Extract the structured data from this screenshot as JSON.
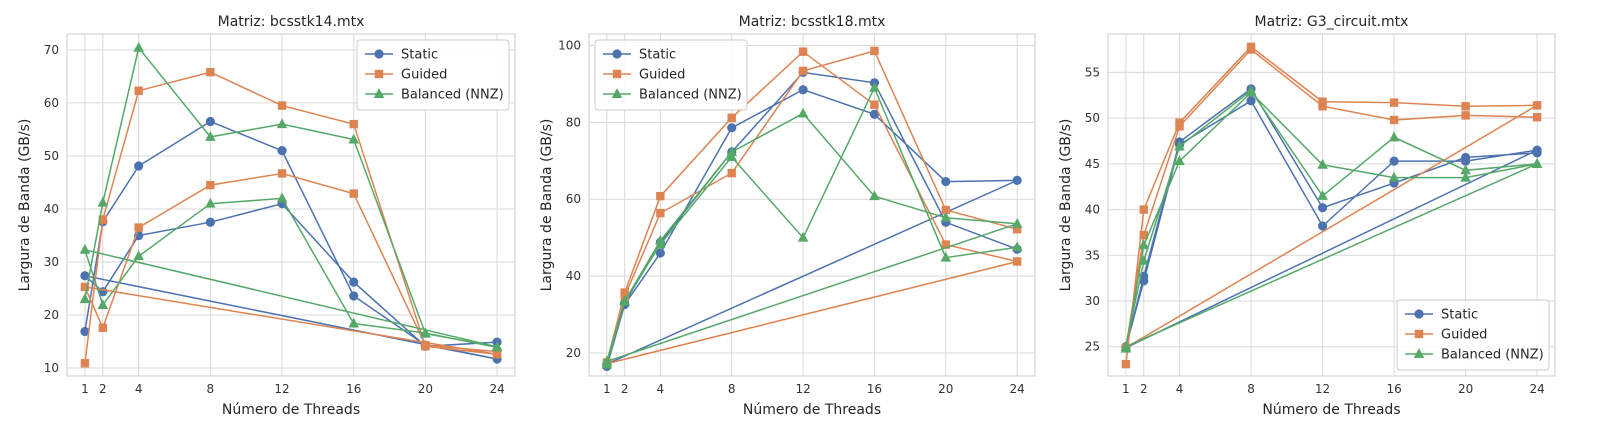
{
  "colors": {
    "Static": "#4c72b0",
    "Guided": "#dd8452",
    "Balanced (NNZ)": "#55a868"
  },
  "markers": {
    "Static": "circle",
    "Guided": "square",
    "Balanced (NNZ)": "triangle"
  },
  "chart_data": [
    {
      "type": "line",
      "title": "Matriz: bcsstk14.mtx",
      "xlabel": "Número de Threads",
      "ylabel": "Largura de Banda (GB/s)",
      "xlim": [
        0,
        25
      ],
      "ylim": [
        8.5,
        73
      ],
      "xticks": [
        1,
        2,
        4,
        8,
        12,
        16,
        20,
        24
      ],
      "yticks": [
        10,
        20,
        30,
        40,
        50,
        60,
        70
      ],
      "grid": true,
      "legend_loc": "upper-right",
      "series": [
        {
          "name": "Static",
          "x": [
            1,
            2,
            4,
            8,
            12,
            16,
            20,
            24,
            1,
            2,
            4,
            8,
            12,
            16,
            20,
            24
          ],
          "y": [
            16.9,
            37.6,
            48.1,
            56.5,
            51.0,
            23.6,
            14.3,
            11.7,
            27.4,
            24.4,
            35.0,
            37.5,
            41.0,
            26.2,
            14.1,
            14.9
          ]
        },
        {
          "name": "Guided",
          "x": [
            1,
            2,
            4,
            8,
            12,
            16,
            20,
            24,
            1,
            2,
            4,
            8,
            12,
            16,
            20,
            24
          ],
          "y": [
            10.9,
            38.0,
            62.3,
            65.8,
            59.5,
            56.0,
            14.1,
            12.6,
            25.3,
            17.6,
            36.5,
            44.5,
            46.7,
            42.9,
            14.3,
            13.1
          ]
        },
        {
          "name": "Balanced (NNZ)",
          "x": [
            1,
            2,
            4,
            8,
            12,
            16,
            20,
            24,
            1,
            2,
            4,
            8,
            12,
            16,
            20,
            24
          ],
          "y": [
            23.0,
            41.2,
            70.4,
            53.6,
            56.0,
            53.1,
            16.5,
            14.0,
            32.3,
            21.9,
            31.1,
            41.0,
            42.0,
            18.4,
            16.6,
            13.9
          ]
        }
      ],
      "legend": [
        "Static",
        "Guided",
        "Balanced (NNZ)"
      ]
    },
    {
      "type": "line",
      "title": "Matriz: bcsstk18.mtx",
      "xlabel": "Número de Threads",
      "ylabel": "Largura de Banda (GB/s)",
      "xlim": [
        0,
        25
      ],
      "ylim": [
        14,
        103
      ],
      "xticks": [
        1,
        2,
        4,
        8,
        12,
        16,
        20,
        24
      ],
      "yticks": [
        20,
        40,
        60,
        80,
        100
      ],
      "grid": true,
      "legend_loc": "upper-left",
      "series": [
        {
          "name": "Static",
          "x": [
            1,
            2,
            4,
            8,
            12,
            16,
            20,
            24,
            1,
            2,
            4,
            8,
            12,
            16,
            20,
            24
          ],
          "y": [
            16.5,
            32.6,
            46.0,
            78.6,
            88.5,
            82.1,
            64.6,
            64.9,
            17.1,
            33.0,
            48.8,
            72.3,
            93.0,
            90.3,
            54.0,
            47.0
          ]
        },
        {
          "name": "Guided",
          "x": [
            1,
            2,
            4,
            8,
            12,
            16,
            20,
            24,
            1,
            2,
            4,
            8,
            12,
            16,
            20,
            24
          ],
          "y": [
            17.5,
            35.7,
            60.8,
            81.2,
            98.4,
            84.6,
            48.2,
            43.8,
            17.2,
            34.8,
            56.4,
            66.8,
            93.4,
            98.6,
            57.2,
            52.2
          ]
        },
        {
          "name": "Balanced (NNZ)",
          "x": [
            1,
            2,
            4,
            8,
            12,
            16,
            20,
            24,
            1,
            2,
            4,
            8,
            12,
            16,
            20,
            24
          ],
          "y": [
            17.0,
            33.5,
            49.2,
            72.3,
            82.3,
            60.8,
            55.2,
            53.6,
            17.8,
            33.4,
            48.3,
            71.0,
            50.0,
            89.0,
            44.8,
            47.5
          ]
        }
      ],
      "legend": [
        "Static",
        "Guided",
        "Balanced (NNZ)"
      ]
    },
    {
      "type": "line",
      "title": "Matriz: G3_circuit.mtx",
      "xlabel": "Número de Threads",
      "ylabel": "Largura de Banda (GB/s)",
      "xlim": [
        0,
        25
      ],
      "ylim": [
        21.8,
        59.2
      ],
      "xticks": [
        1,
        2,
        4,
        8,
        12,
        16,
        20,
        24
      ],
      "yticks": [
        25,
        30,
        35,
        40,
        45,
        50,
        55
      ],
      "grid": true,
      "legend_loc": "lower-right",
      "series": [
        {
          "name": "Static",
          "x": [
            1,
            2,
            4,
            8,
            12,
            16,
            20,
            24,
            1,
            2,
            4,
            8,
            12,
            16,
            20,
            24
          ],
          "y": [
            25.0,
            32.2,
            47.1,
            51.9,
            38.2,
            45.3,
            45.3,
            46.5,
            24.9,
            32.7,
            47.4,
            53.2,
            40.2,
            42.9,
            45.7,
            46.2
          ]
        },
        {
          "name": "Guided",
          "x": [
            1,
            2,
            4,
            8,
            12,
            16,
            20,
            24,
            1,
            2,
            4,
            8,
            12,
            16,
            20,
            24
          ],
          "y": [
            23.1,
            40.0,
            49.5,
            57.8,
            51.8,
            51.7,
            51.3,
            51.4,
            24.9,
            37.2,
            49.1,
            57.5,
            51.3,
            49.8,
            50.3,
            50.1
          ]
        },
        {
          "name": "Balanced (NNZ)",
          "x": [
            1,
            2,
            4,
            8,
            12,
            16,
            20,
            24,
            1,
            2,
            4,
            8,
            12,
            16,
            20,
            24
          ],
          "y": [
            24.8,
            36.1,
            45.3,
            52.8,
            44.9,
            43.5,
            43.5,
            45.0,
            25.0,
            34.4,
            46.9,
            53.0,
            41.5,
            47.9,
            44.3,
            45.0
          ]
        }
      ],
      "legend": [
        "Static",
        "Guided",
        "Balanced (NNZ)"
      ]
    }
  ]
}
